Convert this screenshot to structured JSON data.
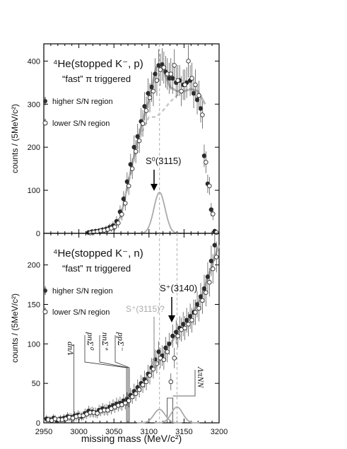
{
  "chart_data": [
    {
      "type": "scatter",
      "title": "⁴He(stopped K⁻, p)",
      "subtitle": "“fast” π triggered",
      "ylabel": "counts / (5MeV/c²)",
      "xlabel": "",
      "xlim": [
        2950,
        3200
      ],
      "ylim": [
        0,
        440
      ],
      "yticks": [
        "0",
        "100",
        "200",
        "300",
        "400"
      ],
      "legend_position": "top-left",
      "legend": [
        {
          "label": "higher S/N region",
          "marker": "filled"
        },
        {
          "label": "lower S/N region",
          "marker": "open"
        }
      ],
      "annotation": {
        "label": "S⁰(3115)",
        "x": 3115,
        "color": "#000000"
      },
      "series": [
        {
          "name": "higher S/N region",
          "marker": "filled",
          "x": [
            3015,
            3020,
            3025,
            3030,
            3035,
            3040,
            3045,
            3050,
            3055,
            3060,
            3065,
            3070,
            3075,
            3080,
            3085,
            3090,
            3095,
            3100,
            3105,
            3110,
            3115,
            3120,
            3125,
            3130,
            3135,
            3140,
            3145,
            3150,
            3155,
            3160,
            3165,
            3170,
            3175,
            3180,
            3185,
            3190,
            3195
          ],
          "y": [
            2,
            4,
            5,
            6,
            8,
            10,
            14,
            18,
            28,
            50,
            80,
            120,
            160,
            200,
            225,
            260,
            295,
            325,
            340,
            370,
            390,
            392,
            375,
            360,
            360,
            350,
            355,
            345,
            350,
            355,
            325,
            310,
            290,
            180,
            115,
            55,
            5
          ]
        },
        {
          "name": "lower S/N region",
          "marker": "open",
          "x": [
            3015,
            3020,
            3025,
            3030,
            3035,
            3040,
            3045,
            3050,
            3055,
            3060,
            3065,
            3070,
            3075,
            3080,
            3085,
            3090,
            3095,
            3100,
            3105,
            3110,
            3115,
            3120,
            3125,
            3130,
            3135,
            3140,
            3145,
            3150,
            3155,
            3160,
            3165,
            3170,
            3175,
            3180,
            3185,
            3190,
            3195
          ],
          "y": [
            1,
            3,
            4,
            6,
            7,
            9,
            12,
            15,
            24,
            44,
            70,
            110,
            150,
            190,
            215,
            255,
            285,
            315,
            330,
            355,
            380,
            385,
            370,
            370,
            390,
            355,
            330,
            345,
            400,
            360,
            345,
            320,
            275,
            165,
            110,
            45,
            2
          ]
        }
      ],
      "fit_total": {
        "x": [
          3050,
          3060,
          3070,
          3080,
          3090,
          3100,
          3105,
          3110,
          3115,
          3120,
          3125,
          3130,
          3140,
          3150,
          3160,
          3170,
          3180
        ],
        "y": [
          10,
          40,
          115,
          190,
          255,
          310,
          345,
          385,
          390,
          380,
          360,
          340,
          330,
          330,
          335,
          330,
          300
        ]
      },
      "fit_background": {
        "x": [
          3050,
          3060,
          3070,
          3080,
          3090,
          3100,
          3110,
          3120,
          3130,
          3140,
          3150,
          3160,
          3170,
          3180
        ],
        "y": [
          10,
          40,
          110,
          180,
          235,
          270,
          270,
          285,
          305,
          320,
          330,
          335,
          330,
          300
        ]
      },
      "signal_peak": {
        "center": 3115,
        "height": 95,
        "sigma": 8
      }
    },
    {
      "type": "scatter",
      "title": "⁴He(stopped K⁻, n)",
      "subtitle": "“fast” π triggered",
      "xlabel": "missing mass (MeV/c²)",
      "ylabel": "counts / (5MeV/c²)",
      "xlim": [
        2950,
        3200
      ],
      "ylim": [
        0,
        240
      ],
      "xticks": [
        "2950",
        "3000",
        "3050",
        "3100",
        "3150",
        "3200"
      ],
      "yticks": [
        "0",
        "50",
        "100",
        "150",
        "200"
      ],
      "legend_position": "middle-left",
      "legend": [
        {
          "label": "higher S/N region",
          "marker": "filled"
        },
        {
          "label": "lower S/N region",
          "marker": "open"
        }
      ],
      "annotations": [
        {
          "label": "S⁺(3140)",
          "x": 3140,
          "color": "#000000"
        },
        {
          "label": "S⁺(3115)?",
          "x": 3115,
          "color": "#aaaaaa"
        }
      ],
      "thresholds": [
        {
          "label": "dnΛ",
          "x": 2993
        },
        {
          "label": "pnΣ⁰",
          "x": 3068
        },
        {
          "label": "nnΣ⁺",
          "x": 3070
        },
        {
          "label": "ppΣ⁻",
          "x": 3072
        },
        {
          "label": "ΛπNN",
          "x": 3130
        }
      ],
      "series": [
        {
          "name": "higher S/N region",
          "marker": "filled",
          "x": [
            2955,
            2960,
            2965,
            2970,
            2975,
            2980,
            2985,
            2990,
            2995,
            3000,
            3005,
            3010,
            3015,
            3020,
            3025,
            3030,
            3035,
            3040,
            3045,
            3050,
            3055,
            3060,
            3065,
            3070,
            3075,
            3080,
            3085,
            3090,
            3095,
            3100,
            3105,
            3110,
            3115,
            3120,
            3125,
            3130,
            3135,
            3140,
            3145,
            3150,
            3155,
            3160,
            3165,
            3170,
            3175,
            3180,
            3185,
            3190,
            3195
          ],
          "y": [
            5,
            4,
            6,
            3,
            5,
            6,
            8,
            7,
            9,
            10,
            8,
            12,
            15,
            14,
            13,
            16,
            18,
            17,
            20,
            22,
            24,
            25,
            28,
            30,
            35,
            40,
            45,
            50,
            55,
            62,
            70,
            80,
            90,
            85,
            95,
            100,
            110,
            115,
            120,
            125,
            130,
            135,
            140,
            150,
            160,
            170,
            185,
            205,
            225
          ]
        },
        {
          "name": "lower S/N region",
          "marker": "open",
          "x": [
            2955,
            2960,
            2965,
            2970,
            2975,
            2980,
            2985,
            2990,
            2995,
            3000,
            3005,
            3010,
            3015,
            3020,
            3025,
            3030,
            3035,
            3040,
            3045,
            3050,
            3055,
            3060,
            3065,
            3070,
            3075,
            3080,
            3085,
            3090,
            3095,
            3100,
            3105,
            3110,
            3115,
            3120,
            3125,
            3130,
            3135,
            3140,
            3145,
            3150,
            3155,
            3160,
            3165,
            3170,
            3175,
            3180,
            3185,
            3190,
            3195
          ],
          "y": [
            4,
            3,
            5,
            4,
            4,
            5,
            7,
            6,
            8,
            9,
            9,
            11,
            13,
            13,
            12,
            15,
            16,
            16,
            18,
            20,
            22,
            23,
            25,
            28,
            33,
            37,
            42,
            48,
            52,
            60,
            68,
            75,
            82,
            80,
            90,
            52,
            82,
            110,
            118,
            120,
            125,
            130,
            140,
            145,
            155,
            165,
            178,
            195,
            210
          ]
        }
      ],
      "fit_total": {
        "x": [
          2950,
          2980,
          3000,
          3020,
          3040,
          3060,
          3080,
          3100,
          3115,
          3130,
          3145,
          3160,
          3175,
          3190,
          3200
        ],
        "y": [
          3,
          6,
          9,
          12,
          16,
          22,
          38,
          60,
          78,
          100,
          118,
          135,
          160,
          200,
          225
        ]
      },
      "signal_peaks": [
        {
          "center": 3115,
          "height": 17,
          "sigma": 8
        },
        {
          "center": 3140,
          "height": 20,
          "sigma": 8
        }
      ]
    }
  ]
}
